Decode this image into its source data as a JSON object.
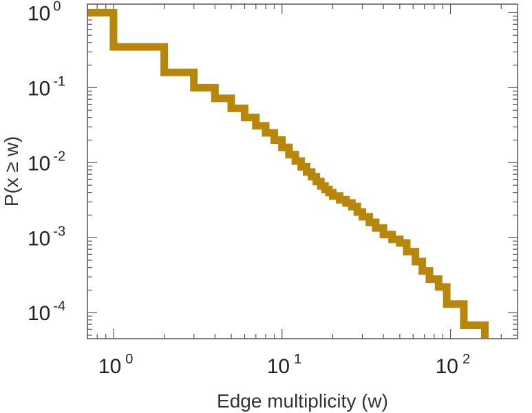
{
  "chart_data": {
    "type": "line",
    "step": true,
    "xscale": "log",
    "yscale": "log",
    "xlabel": "Edge multiplicity (w)",
    "ylabel": "P(x ≥ w)",
    "xlim": [
      0.7,
      250
    ],
    "ylim": [
      4.5e-05,
      1.3
    ],
    "grid": false,
    "line_color": "#b8860b",
    "x_ticks": [
      {
        "base": "10",
        "exp": "0"
      },
      {
        "base": "10",
        "exp": "1"
      },
      {
        "base": "10",
        "exp": "2"
      }
    ],
    "y_ticks": [
      {
        "base": "10",
        "exp": "0"
      },
      {
        "base": "10",
        "exp": "-1"
      },
      {
        "base": "10",
        "exp": "-2"
      },
      {
        "base": "10",
        "exp": "-3"
      },
      {
        "base": "10",
        "exp": "-4"
      }
    ],
    "series": [
      {
        "x": [
          1,
          2,
          3,
          4,
          5,
          6,
          7,
          8,
          9,
          10,
          11,
          12,
          13,
          14,
          15,
          16,
          17,
          18,
          19,
          20,
          22,
          24,
          26,
          28,
          30,
          33,
          36,
          40,
          45,
          50,
          55,
          62,
          68,
          75,
          85,
          95,
          120,
          160
        ],
        "y": [
          1.0,
          0.35,
          0.16,
          0.1,
          0.072,
          0.053,
          0.04,
          0.031,
          0.025,
          0.02,
          0.016,
          0.0128,
          0.0105,
          0.0088,
          0.0075,
          0.0065,
          0.0056,
          0.0049,
          0.0044,
          0.004,
          0.0036,
          0.0032,
          0.0029,
          0.0026,
          0.0022,
          0.0019,
          0.0016,
          0.00135,
          0.0011,
          0.00095,
          0.00085,
          0.00065,
          0.00048,
          0.00036,
          0.00028,
          0.00022,
          0.00013,
          6.8e-05
        ]
      }
    ]
  }
}
